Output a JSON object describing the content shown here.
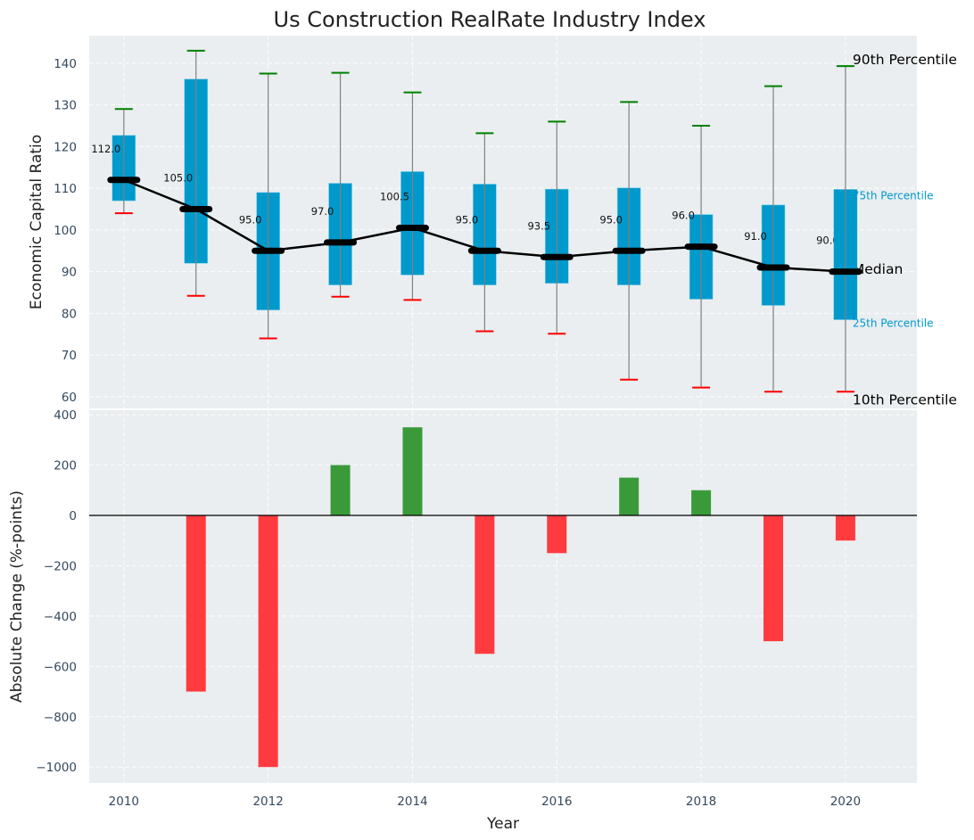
{
  "chart_data": [
    {
      "type": "box",
      "title": "Us Construction RealRate Industry Index",
      "xlabel": "",
      "ylabel": "Economic Capital Ratio",
      "ylim": [
        57.2,
        146.6
      ],
      "xlim": [
        2009.52,
        2020.99
      ],
      "yticks": [
        60,
        70,
        80,
        90,
        100,
        110,
        120,
        130,
        140
      ],
      "grid": true,
      "x": [
        2010,
        2011,
        2012,
        2013,
        2014,
        2015,
        2016,
        2017,
        2018,
        2019,
        2020
      ],
      "series": {
        "p90": [
          129.0,
          143.0,
          137.5,
          137.7,
          133.0,
          123.2,
          126.0,
          130.7,
          125.0,
          134.5,
          139.3
        ],
        "p75": [
          122.7,
          136.2,
          109.0,
          111.2,
          114.0,
          111.0,
          109.8,
          110.1,
          103.7,
          106.0,
          109.7
        ],
        "median": [
          112.0,
          105.0,
          95.0,
          97.0,
          100.5,
          95.0,
          93.5,
          95.0,
          96.0,
          91.0,
          90.0
        ],
        "p25": [
          107.0,
          92.0,
          80.8,
          86.8,
          89.2,
          86.8,
          87.2,
          86.8,
          83.4,
          81.9,
          78.5
        ],
        "p10": [
          104.0,
          84.2,
          74.0,
          84.0,
          83.2,
          75.7,
          75.1,
          64.1,
          62.2,
          61.2,
          61.2
        ]
      },
      "median_labels": [
        "112.0",
        "105.0",
        "95.0",
        "97.0",
        "100.5",
        "95.0",
        "93.5",
        "95.0",
        "96.0",
        "91.0",
        "90.0"
      ],
      "annotations": {
        "p90": "90th Percentile",
        "p75": "75th Percentile",
        "median": "Median",
        "p25": "25th Percentile",
        "p10": "10th Percentile"
      },
      "colors": {
        "box": "#0099cc",
        "whisker": "#808080",
        "p90_cap": "#008000",
        "p10_cap": "#ff0000",
        "median_line": "#000000",
        "background": "#eaeef0"
      }
    },
    {
      "type": "bar",
      "title": "",
      "xlabel": "Year",
      "ylabel": "Absolute Change (%-points)",
      "ylim": [
        -1063,
        418
      ],
      "xlim": [
        2009.52,
        2020.99
      ],
      "yticks": [
        -1000,
        -800,
        -600,
        -400,
        -200,
        0,
        200,
        400
      ],
      "xticks": [
        2010,
        2012,
        2014,
        2016,
        2018,
        2020
      ],
      "grid": true,
      "x": [
        2011,
        2012,
        2013,
        2014,
        2015,
        2016,
        2017,
        2018,
        2019,
        2020
      ],
      "values": [
        -700,
        -1000,
        200,
        350,
        -550,
        -150,
        150,
        100,
        -500,
        -100
      ],
      "colors": {
        "positive": "#3a9a3a",
        "negative": "#ff3b3f",
        "zero_line": "#000000",
        "background": "#eaeef0"
      }
    }
  ]
}
